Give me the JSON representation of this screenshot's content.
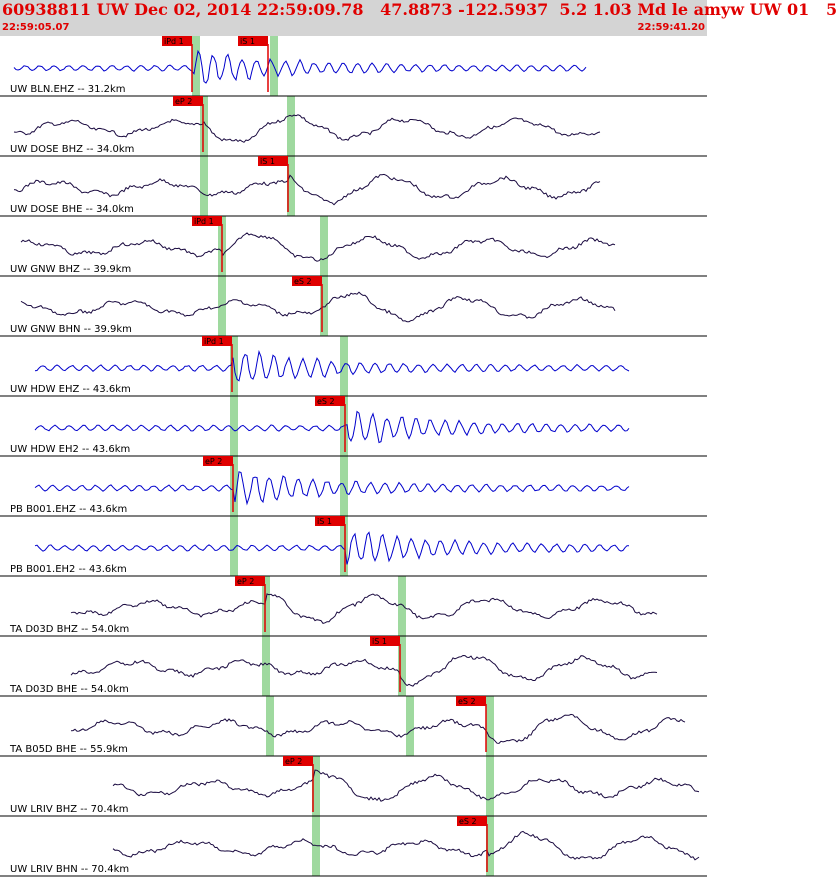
{
  "header": {
    "title": "60938811 UW Dec 02, 2014 22:59:09.78   47.8873 -122.5937  5.2 1.03 Md le amyw UW 01   5",
    "time_start": "22:59:05.07",
    "time_end": "22:59:41.20"
  },
  "colors": {
    "blue_trace": "#0000cc",
    "dark_trace": "#1a0a40",
    "pick": "#e00000",
    "window": "#9fd99f"
  },
  "traces": [
    {
      "label": "UW BLN.EHZ -- 31.2km",
      "color": "blue",
      "picks": [
        "iPd 1",
        "iS 1"
      ],
      "start": 0.02,
      "end": 0.83
    },
    {
      "label": "UW DOSE BHZ -- 34.0km",
      "color": "dark",
      "picks": [
        "eP 2"
      ],
      "start": 0.02,
      "end": 0.85
    },
    {
      "label": "UW DOSE BHE -- 34.0km",
      "color": "dark",
      "picks": [
        "iS 1"
      ],
      "start": 0.02,
      "end": 0.85
    },
    {
      "label": "UW GNW BHZ -- 39.9km",
      "color": "dark",
      "picks": [
        "iPd 1"
      ],
      "start": 0.03,
      "end": 0.87
    },
    {
      "label": "UW GNW BHN -- 39.9km",
      "color": "dark",
      "picks": [
        "eS 2"
      ],
      "start": 0.03,
      "end": 0.87
    },
    {
      "label": "UW HDW EHZ -- 43.6km",
      "color": "blue",
      "picks": [
        "iPd 1"
      ],
      "start": 0.05,
      "end": 0.89
    },
    {
      "label": "UW HDW EH2 -- 43.6km",
      "color": "blue",
      "picks": [
        "eS 2"
      ],
      "start": 0.05,
      "end": 0.89
    },
    {
      "label": "PB B001.EHZ -- 43.6km",
      "color": "blue",
      "picks": [
        "eP 2"
      ],
      "start": 0.05,
      "end": 0.89
    },
    {
      "label": "PB B001.EH2 -- 43.6km",
      "color": "blue",
      "picks": [
        "iS 1"
      ],
      "start": 0.05,
      "end": 0.89
    },
    {
      "label": "TA D03D BHZ -- 54.0km",
      "color": "dark",
      "picks": [
        "eP 2"
      ],
      "start": 0.1,
      "end": 0.93
    },
    {
      "label": "TA D03D BHE -- 54.0km",
      "color": "dark",
      "picks": [
        "iS 1"
      ],
      "start": 0.1,
      "end": 0.93
    },
    {
      "label": "TA B05D BHE -- 55.9km",
      "color": "dark",
      "picks": [
        "eS 2"
      ],
      "start": 0.1,
      "end": 0.97
    },
    {
      "label": "UW LRIV BHZ -- 70.4km",
      "color": "dark",
      "picks": [
        "eP 2"
      ],
      "start": 0.16,
      "end": 0.99
    },
    {
      "label": "UW LRIV BHN -- 70.4km",
      "color": "dark",
      "picks": [
        "eS 2"
      ],
      "start": 0.16,
      "end": 0.99
    }
  ]
}
